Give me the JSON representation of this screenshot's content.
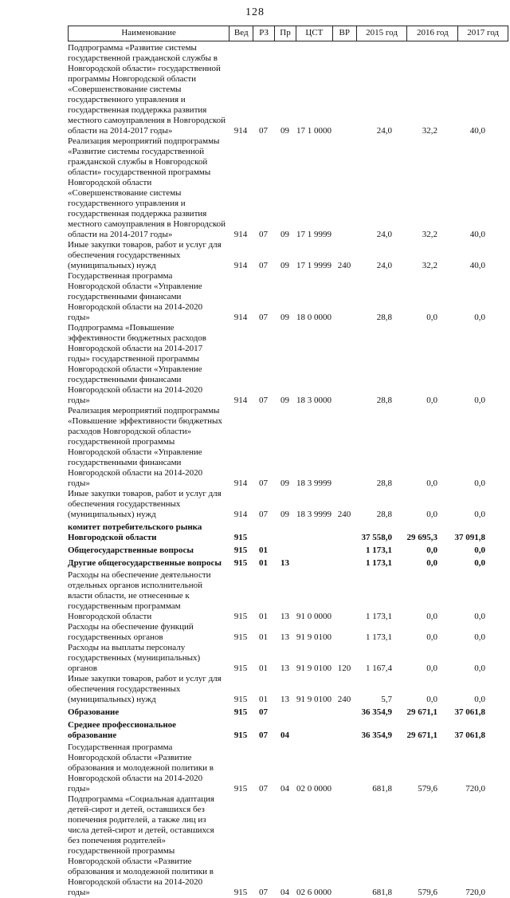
{
  "page": {
    "number": "128"
  },
  "table": {
    "columns": [
      {
        "key": "name",
        "label": "Наименование"
      },
      {
        "key": "ved",
        "label": "Вед"
      },
      {
        "key": "rz",
        "label": "РЗ"
      },
      {
        "key": "pr",
        "label": "Пр"
      },
      {
        "key": "cst",
        "label": "ЦСТ"
      },
      {
        "key": "vr",
        "label": "ВР"
      },
      {
        "key": "y2015",
        "label": "2015 год"
      },
      {
        "key": "y2016",
        "label": "2016 год"
      },
      {
        "key": "y2017",
        "label": "2017 год"
      }
    ],
    "rows": [
      {
        "name": "Подпрограмма «Развитие системы государственной гражданской службы в Новгородской области» государственной программы Новгородской области «Совершенствование системы государственного управления и государственная поддержка развития местного самоуправления в Новгородской области на 2014-2017 годы»",
        "ved": "914",
        "rz": "07",
        "pr": "09",
        "cst": "17 1 0000",
        "vr": "",
        "y2015": "24,0",
        "y2016": "32,2",
        "y2017": "40,0",
        "bold": false
      },
      {
        "name": "Реализация мероприятий подпрограммы «Развитие системы государственной гражданской службы в Новгородской области» государственной программы Новгородской области «Совершенствование системы государственного управления и государственная поддержка развития местного самоуправления в Новгородской области на 2014-2017 годы»",
        "ved": "914",
        "rz": "07",
        "pr": "09",
        "cst": "17 1 9999",
        "vr": "",
        "y2015": "24,0",
        "y2016": "32,2",
        "y2017": "40,0",
        "bold": false
      },
      {
        "name": "Иные закупки товаров, работ и услуг для обеспечения государственных (муниципальных) нужд",
        "ved": "914",
        "rz": "07",
        "pr": "09",
        "cst": "17 1 9999",
        "vr": "240",
        "y2015": "24,0",
        "y2016": "32,2",
        "y2017": "40,0",
        "bold": false
      },
      {
        "name": "Государственная программа Новгородской области «Управление государственными финансами Новгородской области на 2014-2020 годы»",
        "ved": "914",
        "rz": "07",
        "pr": "09",
        "cst": "18 0 0000",
        "vr": "",
        "y2015": "28,8",
        "y2016": "0,0",
        "y2017": "0,0",
        "bold": false
      },
      {
        "name": "Подпрограмма «Повышение эффективности бюджетных расходов Новгородской области на 2014-2017 годы» государственной программы Новгородской области «Управление государственными финансами Новгородской области на 2014-2020 годы»",
        "ved": "914",
        "rz": "07",
        "pr": "09",
        "cst": "18 3 0000",
        "vr": "",
        "y2015": "28,8",
        "y2016": "0,0",
        "y2017": "0,0",
        "bold": false
      },
      {
        "name": "Реализация мероприятий подпрограммы «Повышение эффективности бюджетных расходов Новгородской области» государственной программы Новгородской области «Управление государственными финансами Новгородской области на 2014-2020 годы»",
        "ved": "914",
        "rz": "07",
        "pr": "09",
        "cst": "18 3 9999",
        "vr": "",
        "y2015": "28,8",
        "y2016": "0,0",
        "y2017": "0,0",
        "bold": false
      },
      {
        "name": "Иные закупки товаров, работ и услуг для обеспечения государственных (муниципальных) нужд",
        "ved": "914",
        "rz": "07",
        "pr": "09",
        "cst": "18 3 9999",
        "vr": "240",
        "y2015": "28,8",
        "y2016": "0,0",
        "y2017": "0,0",
        "bold": false
      },
      {
        "name": "комитет потребительского рынка Новгородской области",
        "ved": "915",
        "rz": "",
        "pr": "",
        "cst": "",
        "vr": "",
        "y2015": "37 558,0",
        "y2016": "29 695,3",
        "y2017": "37 091,8",
        "bold": true
      },
      {
        "name": "Общегосударственные вопросы",
        "ved": "915",
        "rz": "01",
        "pr": "",
        "cst": "",
        "vr": "",
        "y2015": "1 173,1",
        "y2016": "0,0",
        "y2017": "0,0",
        "bold": true
      },
      {
        "name": "Другие общегосударственные вопросы",
        "ved": "915",
        "rz": "01",
        "pr": "13",
        "cst": "",
        "vr": "",
        "y2015": "1 173,1",
        "y2016": "0,0",
        "y2017": "0,0",
        "bold": true
      },
      {
        "name": "Расходы на обеспечение деятельности отдельных органов исполнительной власти области, не отнесенные к государственным программам Новгородской области",
        "ved": "915",
        "rz": "01",
        "pr": "13",
        "cst": "91 0 0000",
        "vr": "",
        "y2015": "1 173,1",
        "y2016": "0,0",
        "y2017": "0,0",
        "bold": false
      },
      {
        "name": "Расходы на обеспечение функций государственных органов",
        "ved": "915",
        "rz": "01",
        "pr": "13",
        "cst": "91 9 0100",
        "vr": "",
        "y2015": "1 173,1",
        "y2016": "0,0",
        "y2017": "0,0",
        "bold": false
      },
      {
        "name": "Расходы на выплаты персоналу государственных (муниципальных) органов",
        "ved": "915",
        "rz": "01",
        "pr": "13",
        "cst": "91 9 0100",
        "vr": "120",
        "y2015": "1 167,4",
        "y2016": "0,0",
        "y2017": "0,0",
        "bold": false
      },
      {
        "name": "Иные закупки товаров, работ и услуг для обеспечения государственных (муниципальных) нужд",
        "ved": "915",
        "rz": "01",
        "pr": "13",
        "cst": "91 9 0100",
        "vr": "240",
        "y2015": "5,7",
        "y2016": "0,0",
        "y2017": "0,0",
        "bold": false
      },
      {
        "name": "Образование",
        "ved": "915",
        "rz": "07",
        "pr": "",
        "cst": "",
        "vr": "",
        "y2015": "36 354,9",
        "y2016": "29 671,1",
        "y2017": "37 061,8",
        "bold": true
      },
      {
        "name": "Среднее профессиональное образование",
        "ved": "915",
        "rz": "07",
        "pr": "04",
        "cst": "",
        "vr": "",
        "y2015": "36 354,9",
        "y2016": "29 671,1",
        "y2017": "37 061,8",
        "bold": true
      },
      {
        "name": "Государственная программа Новгородской области «Развитие образования и молодежной политики в Новгородской области на 2014-2020 годы»",
        "ved": "915",
        "rz": "07",
        "pr": "04",
        "cst": "02 0 0000",
        "vr": "",
        "y2015": "681,8",
        "y2016": "579,6",
        "y2017": "720,0",
        "bold": false
      },
      {
        "name": "Подпрограмма «Социальная адаптация детей-сирот и детей, оставшихся без попечения родителей, а также лиц из числа детей-сирот и детей, оставшихся без попечения родителей» государственной программы Новгородской области «Развитие образования и молодежной политики в Новгородской области на 2014-2020 годы»",
        "ved": "915",
        "rz": "07",
        "pr": "04",
        "cst": "02 6 0000",
        "vr": "",
        "y2015": "681,8",
        "y2016": "579,6",
        "y2017": "720,0",
        "bold": false
      }
    ]
  }
}
